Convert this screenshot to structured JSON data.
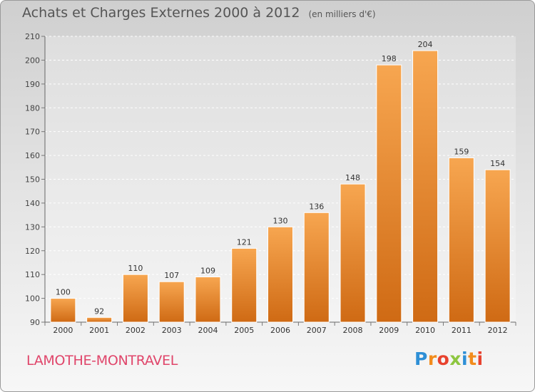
{
  "header": {
    "title": "Achats et Charges Externes 2000 à 2012",
    "subtitle": "(en milliers d'€)"
  },
  "footer": {
    "commune": "LAMOTHE-MONTRAVEL",
    "logo_letters": [
      "P",
      "r",
      "o",
      "x",
      "i",
      "t",
      "i"
    ],
    "logo_colors": [
      "#2e8fd6",
      "#f28c1c",
      "#e8422e",
      "#8dc63f",
      "#2e8fd6",
      "#f28c1c",
      "#e8422e"
    ]
  },
  "chart_data": {
    "type": "bar",
    "title": "Achats et Charges Externes 2000 à 2012",
    "subtitle": "(en milliers d'€)",
    "categories": [
      "2000",
      "2001",
      "2002",
      "2003",
      "2004",
      "2005",
      "2006",
      "2007",
      "2008",
      "2009",
      "2010",
      "2011",
      "2012"
    ],
    "values": [
      100,
      92,
      110,
      107,
      109,
      121,
      130,
      136,
      148,
      198,
      204,
      159,
      154
    ],
    "ylim": [
      90,
      210
    ],
    "yticks": [
      90,
      100,
      110,
      120,
      130,
      140,
      150,
      160,
      170,
      180,
      190,
      200,
      210
    ],
    "grid": true,
    "bar_color_top": "#f7a650",
    "bar_color_bottom": "#cf6a14"
  }
}
